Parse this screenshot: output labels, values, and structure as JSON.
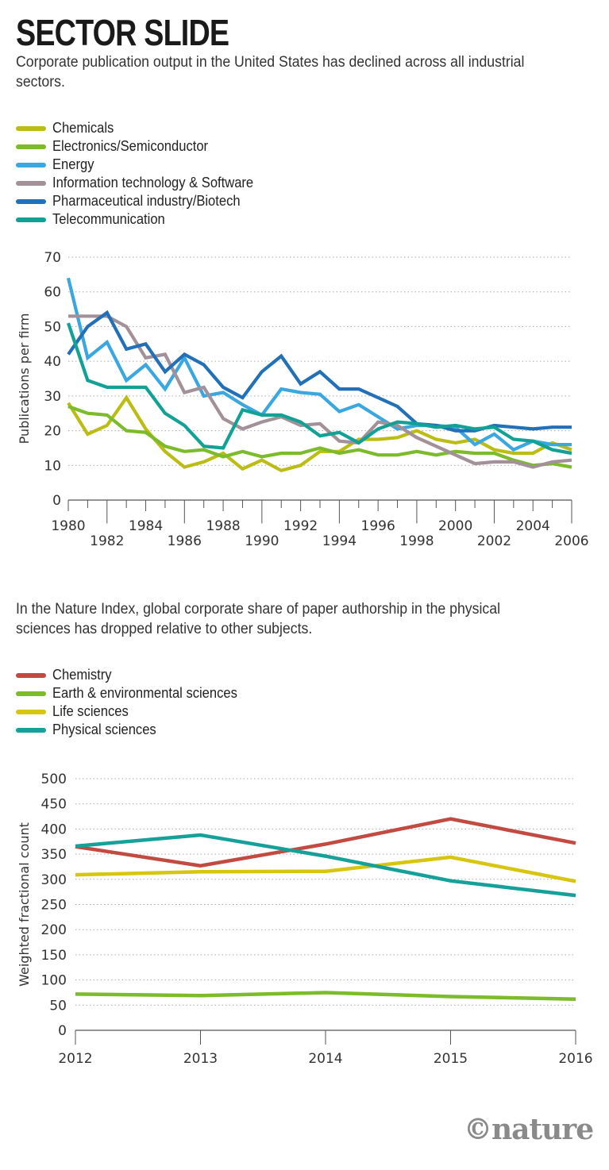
{
  "header": {
    "title": "SECTOR SLIDE",
    "subtitle1": "Corporate publication output in the United States has declined across all industrial sectors.",
    "subtitle2": "In the Nature Index, global corporate share of paper authorship in the physical sciences has dropped relative to other subjects."
  },
  "footer": {
    "logo": "©nature"
  },
  "chart_data": [
    {
      "type": "line",
      "title": "",
      "xlabel": "",
      "ylabel": "Publications per firm",
      "x": [
        1980,
        1981,
        1982,
        1983,
        1984,
        1985,
        1986,
        1987,
        1988,
        1989,
        1990,
        1991,
        1992,
        1993,
        1994,
        1995,
        1996,
        1997,
        1998,
        1999,
        2000,
        2001,
        2002,
        2003,
        2004,
        2005,
        2006
      ],
      "xticks": [
        1980,
        1982,
        1984,
        1986,
        1988,
        1990,
        1992,
        1994,
        1996,
        1998,
        2000,
        2002,
        2004,
        2006
      ],
      "xlim": [
        1980,
        2006
      ],
      "ylim": [
        0,
        70
      ],
      "yticks": [
        0,
        10,
        20,
        30,
        40,
        50,
        60,
        70
      ],
      "grid": true,
      "legend": "top-left",
      "series": [
        {
          "name": "Chemicals",
          "color": "#bcbd14",
          "values": [
            28,
            19,
            21.5,
            29.5,
            20.5,
            14,
            9.5,
            11,
            13.5,
            9,
            11.5,
            8.5,
            10,
            14,
            14,
            17.5,
            17.5,
            18,
            20,
            17.5,
            16.5,
            17.5,
            14.5,
            13.5,
            13.5,
            16.5,
            14.5
          ]
        },
        {
          "name": "Electronics/Semiconductor",
          "color": "#7cbb2a",
          "values": [
            27,
            25,
            24.5,
            20,
            19.5,
            15.5,
            14,
            14.5,
            12.5,
            14,
            12.5,
            13.5,
            13.5,
            15,
            13.5,
            14.5,
            13,
            13,
            14,
            13,
            14,
            13.5,
            13.5,
            11.5,
            10,
            10.5,
            9.5
          ]
        },
        {
          "name": "Energy",
          "color": "#3aa7e0",
          "values": [
            64,
            41,
            45.5,
            34.5,
            39,
            32,
            41,
            30,
            31,
            27.5,
            24.5,
            32,
            31,
            30.5,
            25.5,
            27.5,
            24,
            20.5,
            21.5,
            21.5,
            21,
            16,
            19,
            14.5,
            17,
            16,
            16
          ]
        },
        {
          "name": "Information technology & Software",
          "color": "#a39199",
          "values": [
            53,
            53,
            53,
            50,
            41,
            42,
            31,
            32.5,
            23.5,
            20.5,
            22.5,
            24,
            21.5,
            22,
            17,
            16.5,
            22.5,
            21.5,
            18,
            15.5,
            13,
            10.5,
            11,
            11,
            9.5,
            11,
            11.5
          ]
        },
        {
          "name": "Pharmaceutical industry/Biotech",
          "color": "#2170b8",
          "values": [
            42,
            50,
            54,
            43.5,
            45,
            37,
            42,
            39,
            32.5,
            29.5,
            37,
            41.5,
            33.5,
            37,
            32,
            32,
            29.5,
            27,
            22,
            21.5,
            20,
            20,
            21.5,
            21,
            20.5,
            21,
            21
          ]
        },
        {
          "name": "Telecommunication",
          "color": "#12a195",
          "values": [
            51,
            34.5,
            32.5,
            32.5,
            32.5,
            25,
            21.5,
            15.5,
            15,
            26,
            24.5,
            24.5,
            22.5,
            18.5,
            19.5,
            16.5,
            20.5,
            22.5,
            22,
            21,
            21.5,
            20.5,
            21,
            17.5,
            17,
            14.5,
            13.5
          ]
        }
      ]
    },
    {
      "type": "line",
      "title": "",
      "xlabel": "",
      "ylabel": "Weighted fractional count",
      "x": [
        2012,
        2013,
        2014,
        2015,
        2016
      ],
      "xticks": [
        2012,
        2013,
        2014,
        2015,
        2016
      ],
      "xlim": [
        2012,
        2016
      ],
      "ylim": [
        0,
        500
      ],
      "yticks": [
        0,
        50,
        100,
        150,
        200,
        250,
        300,
        350,
        400,
        450,
        500
      ],
      "grid": true,
      "legend": "top-left",
      "series": [
        {
          "name": "Chemistry",
          "color": "#c24a41",
          "values": [
            365,
            327,
            370,
            420,
            372
          ]
        },
        {
          "name": "Earth & environmental sciences",
          "color": "#7cbb2a",
          "values": [
            72,
            69,
            75,
            67,
            62
          ]
        },
        {
          "name": "Life sciences",
          "color": "#d7c50f",
          "values": [
            309,
            315,
            316,
            344,
            296
          ]
        },
        {
          "name": "Physical sciences",
          "color": "#16a09a",
          "values": [
            366,
            388,
            346,
            297,
            268
          ]
        }
      ]
    }
  ]
}
